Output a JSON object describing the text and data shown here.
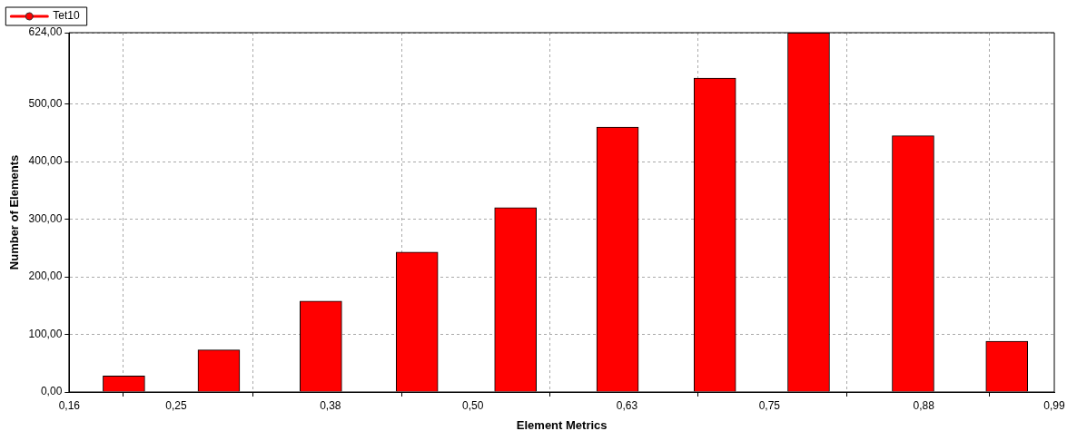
{
  "chart_data": {
    "type": "bar",
    "xlabel": "Element Metrics",
    "ylabel": "Number of Elements",
    "x": [
      0.206,
      0.286,
      0.372,
      0.453,
      0.536,
      0.622,
      0.704,
      0.783,
      0.871,
      0.95
    ],
    "series": [
      {
        "name": "Tet10",
        "color": "#ff0000",
        "values": [
          28,
          73,
          158,
          243,
          320,
          460,
          545,
          624,
          445,
          88
        ]
      }
    ],
    "xlim": [
      0.16,
      0.99
    ],
    "xticks": [
      {
        "value": 0.16,
        "label": "0,16"
      },
      {
        "value": 0.25,
        "label": "0,25"
      },
      {
        "value": 0.38,
        "label": "0,38"
      },
      {
        "value": 0.5,
        "label": "0,50"
      },
      {
        "value": 0.63,
        "label": "0,63"
      },
      {
        "value": 0.75,
        "label": "0,75"
      },
      {
        "value": 0.88,
        "label": "0,88"
      },
      {
        "value": 0.99,
        "label": "0,99"
      }
    ],
    "ylim": [
      0,
      624
    ],
    "yticks": [
      {
        "value": 0,
        "label": "0,00"
      },
      {
        "value": 100,
        "label": "100,00"
      },
      {
        "value": 200,
        "label": "200,00"
      },
      {
        "value": 300,
        "label": "300,00"
      },
      {
        "value": 400,
        "label": "400,00"
      },
      {
        "value": 500,
        "label": "500,00"
      },
      {
        "value": 624,
        "label": "624,00"
      }
    ],
    "grid": true,
    "legend": "top left",
    "marker": "circle"
  }
}
